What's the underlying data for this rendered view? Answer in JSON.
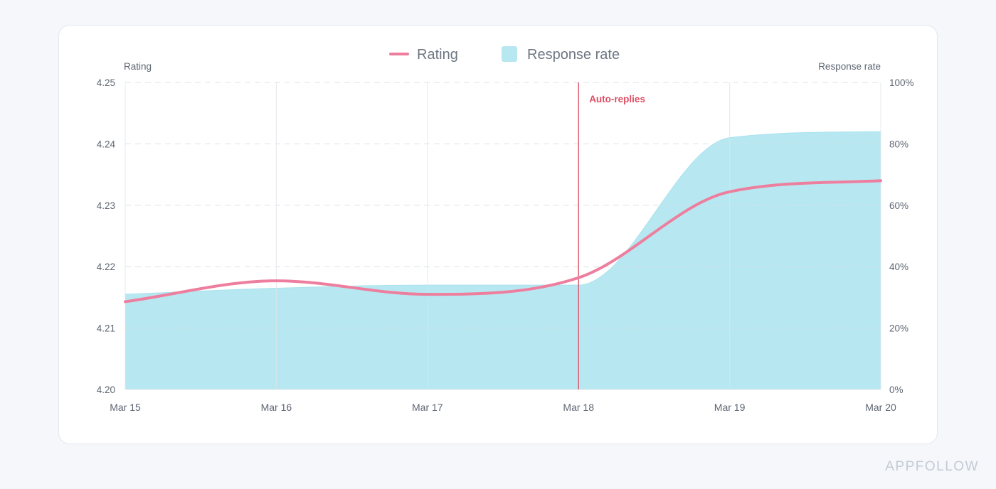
{
  "colors": {
    "rating_line": "#ee7e9e",
    "response_area": "#b7e8f1",
    "response_area_edge": "#a8e2ee",
    "event_line": "#d9485f",
    "event_label": "#dd4e63",
    "grid_solid": "#dfe3e8",
    "grid_dashed": "#d9dde3",
    "tick_text": "#5d6672",
    "legend_text": "#6d7682",
    "brand": "#c4cbd5"
  },
  "chart_data": {
    "type": "line",
    "legend": [
      "Rating",
      "Response rate"
    ],
    "legend_position": "top-center",
    "categories": [
      "Mar 15",
      "Mar 16",
      "Mar 17",
      "Mar 18",
      "Mar 19",
      "Mar 20"
    ],
    "series": [
      {
        "name": "Rating",
        "kind": "line",
        "axis": "left",
        "x": [
          0,
          1,
          2,
          3,
          4,
          5
        ],
        "values": [
          4.2143,
          4.2177,
          4.2155,
          4.2182,
          4.2322,
          4.234
        ]
      },
      {
        "name": "Response rate",
        "kind": "area",
        "axis": "right",
        "x": [
          0,
          1,
          2,
          3,
          4,
          5
        ],
        "values": [
          31,
          33,
          34,
          34,
          82,
          84
        ]
      }
    ],
    "y_left": {
      "label": "Rating",
      "min": 4.2,
      "max": 4.25,
      "ticks": [
        4.2,
        4.21,
        4.22,
        4.23,
        4.24,
        4.25
      ],
      "tick_labels": [
        "4.20",
        "4.21",
        "4.22",
        "4.23",
        "4.24",
        "4.25"
      ]
    },
    "y_right": {
      "label": "Response rate",
      "min": 0,
      "max": 100,
      "tick_labels": [
        "0%",
        "20%",
        "40%",
        "60%",
        "80%",
        "100%"
      ]
    },
    "annotations": [
      {
        "x": 3,
        "label": "Auto-replies"
      }
    ],
    "grid": {
      "horizontal": "dashed",
      "vertical": "solid"
    }
  },
  "brand": {
    "text": "APPFOLLOW"
  }
}
